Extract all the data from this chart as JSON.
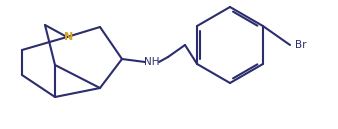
{
  "line_color": "#2B2D6E",
  "line_color_dark": "#1a1a3e",
  "bg_color": "#ffffff",
  "line_width": 1.5,
  "font_size_label": 7.5,
  "N_color": "#DAA520",
  "atom_colors": {
    "N": "#DAA520",
    "NH": "#2B2D6E",
    "Br": "#2B2D6E"
  }
}
